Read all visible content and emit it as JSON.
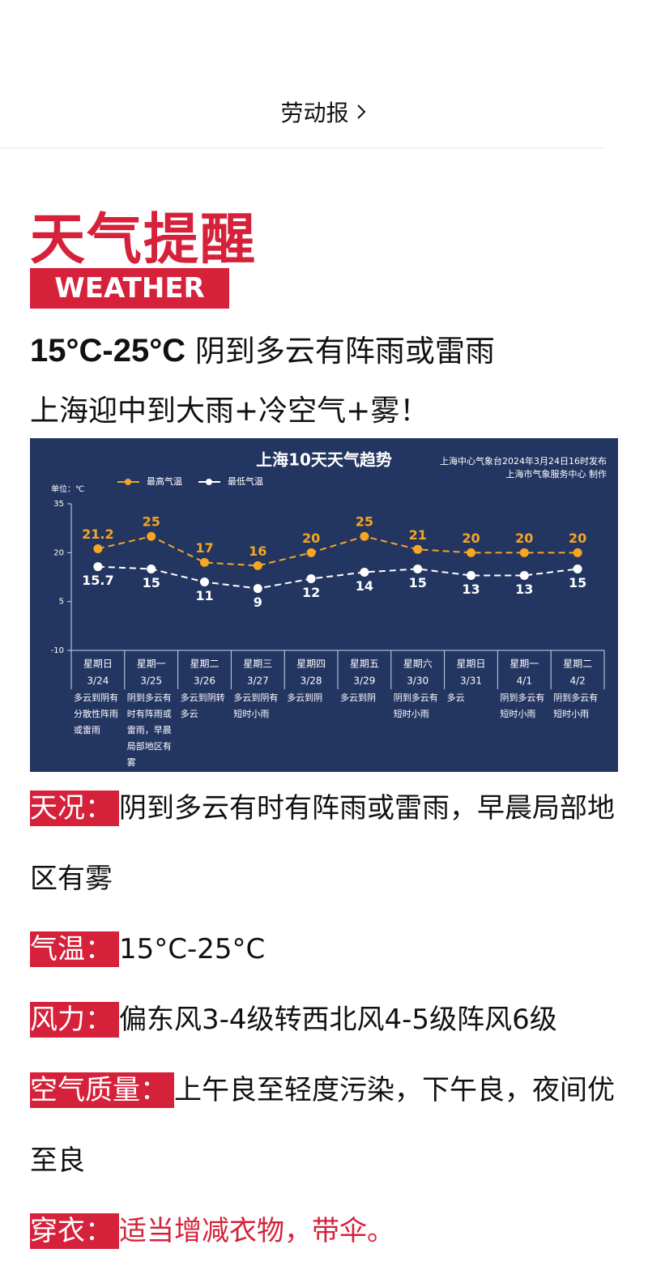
{
  "header": {
    "source": "劳动报"
  },
  "article": {
    "title": "天气提醒",
    "badge": "WEATHER",
    "headline": {
      "range": "15°C-25°C",
      "summary": "阴到多云有阵雨或雷雨",
      "subtitle": "上海迎中到大雨+冷空气+雾！"
    },
    "details": [
      {
        "label": "天况：",
        "text": "阴到多云有时有阵雨或雷雨，早晨局部地区有雾"
      },
      {
        "label": "气温：",
        "text": "15°C-25°C"
      },
      {
        "label": "风力：",
        "text": "偏东风3-4级转西北风4-5级阵风6级"
      },
      {
        "label": "空气质量：",
        "text": "上午良至轻度污染，下午良，夜间优至良"
      },
      {
        "label": "穿衣：",
        "text": "适当增减衣物，带伞。"
      }
    ]
  },
  "chart_data": {
    "type": "line",
    "title": "上海10天天气趋势",
    "sources": [
      "上海中心气象台2024年3月24日16时发布",
      "上海市气象服务中心 制作"
    ],
    "unit_label": "单位：℃",
    "weekdays": [
      "星期日",
      "星期一",
      "星期二",
      "星期三",
      "星期四",
      "星期五",
      "星期六",
      "星期日",
      "星期一",
      "星期二"
    ],
    "categories": [
      "3/24",
      "3/25",
      "3/26",
      "3/27",
      "3/28",
      "3/29",
      "3/30",
      "3/31",
      "4/1",
      "4/2"
    ],
    "descriptions": [
      "多云到阴有分散性阵雨或雷雨",
      "阴到多云有时有阵雨或雷雨，早晨局部地区有雾",
      "多云到阴转多云",
      "多云到阴有短时小雨",
      "多云到阴",
      "多云到阴",
      "阴到多云有短时小雨",
      "多云",
      "阴到多云有短时小雨",
      "阴到多云有短时小雨"
    ],
    "series": [
      {
        "name": "最高气温",
        "color": "#f5a623",
        "values": [
          21.2,
          25,
          17,
          16,
          20,
          25,
          21,
          20,
          20,
          20
        ]
      },
      {
        "name": "最低气温",
        "color": "#ffffff",
        "values": [
          15.7,
          15,
          11,
          9,
          12,
          14,
          15,
          13,
          13,
          15
        ]
      }
    ],
    "ylim": [
      -10,
      35
    ],
    "yticks": [
      -10,
      5,
      20,
      35
    ],
    "background": "#233561"
  }
}
